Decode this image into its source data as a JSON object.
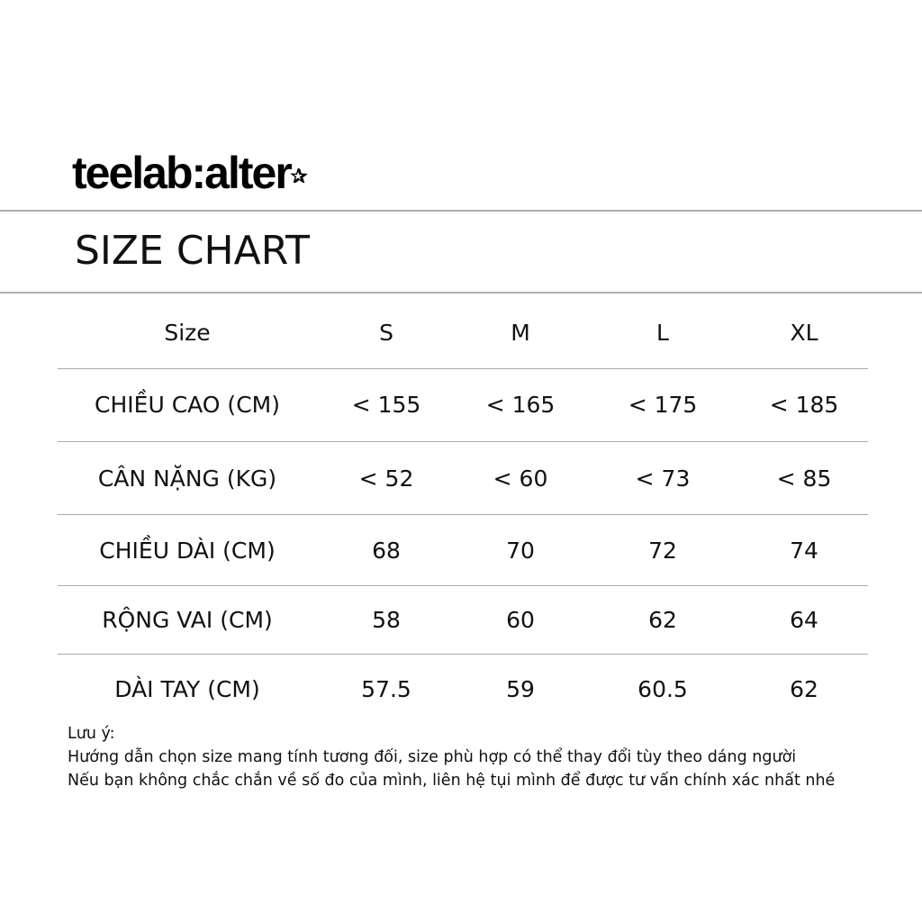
{
  "brand": {
    "logo_text": "teelab:alter",
    "logo_mark": "star-icon"
  },
  "title": "SIZE CHART",
  "table": {
    "headers": [
      "Size",
      "S",
      "M",
      "L",
      "XL"
    ],
    "rows": [
      {
        "label": "CHIỀU CAO (CM)",
        "values": [
          "< 155",
          "< 165",
          "< 175",
          "< 185"
        ]
      },
      {
        "label": "CÂN NẶNG (KG)",
        "values": [
          "< 52",
          "< 60",
          "< 73",
          "< 85"
        ]
      },
      {
        "label": "CHIỀU DÀI (CM)",
        "values": [
          "68",
          "70",
          "72",
          "74"
        ]
      },
      {
        "label": "RỘNG VAI (CM)",
        "values": [
          "58",
          "60",
          "62",
          "64"
        ]
      },
      {
        "label": "DÀI TAY (CM)",
        "values": [
          "57.5",
          "59",
          "60.5",
          "62"
        ]
      }
    ]
  },
  "notes": {
    "heading": "Lưu ý:",
    "lines": [
      "Hướng dẫn chọn size mang tính tương đối, size phù hợp có thể thay đổi tùy theo dáng người",
      "Nếu bạn không chắc chắn về số đo của mình, liên hệ tụi mình để được tư vấn chính xác nhất nhé"
    ]
  }
}
